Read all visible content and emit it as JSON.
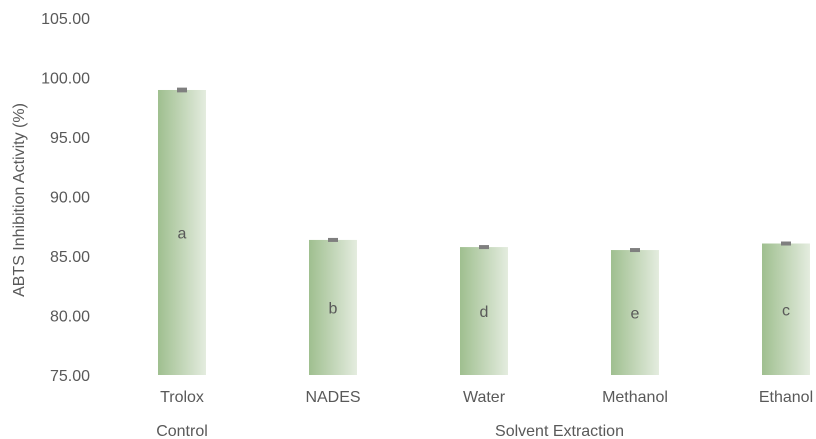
{
  "chart_data": {
    "type": "bar",
    "categories": [
      "Trolox",
      "NADES",
      "Water",
      "Methanol",
      "Ethanol"
    ],
    "values": [
      98.95,
      86.35,
      85.75,
      85.5,
      86.05
    ],
    "error": [
      0.2,
      0.15,
      0.15,
      0.15,
      0.15
    ],
    "significance_letters": [
      "a",
      "b",
      "d",
      "e",
      "c"
    ],
    "groups": [
      {
        "label": "Control",
        "categories": [
          "Trolox"
        ]
      },
      {
        "label": "Solvent Extraction",
        "categories": [
          "NADES",
          "Water",
          "Methanol",
          "Ethanol"
        ]
      }
    ],
    "xlabel": "",
    "ylabel": "ABTS Inhibition Activity (%)",
    "ylim": [
      75,
      105
    ],
    "yticks": [
      "75.00",
      "80.00",
      "85.00",
      "90.00",
      "95.00",
      "100.00",
      "105.00"
    ],
    "grid": false,
    "colors": {
      "bar_dark": "#9fbf8f",
      "bar_light": "#e4ecdf",
      "error_cap": "#7f7f7f",
      "text": "#595959"
    }
  }
}
